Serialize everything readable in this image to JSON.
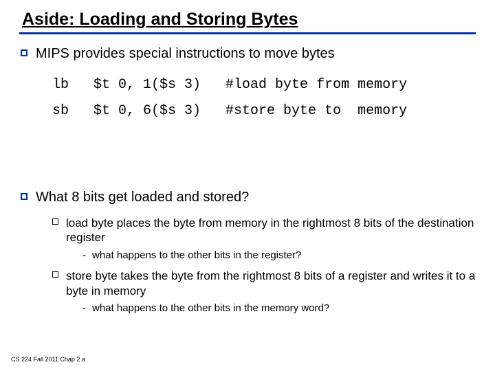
{
  "colors": {
    "accent": "#003399",
    "text": "#000000",
    "background": "#ffffff"
  },
  "title": "Aside: Loading and Storing Bytes",
  "bullet1": "MIPS provides special instructions to move bytes",
  "code": {
    "line1": "lb   $t 0, 1($s 3)   #load byte from memory",
    "line2": "sb   $t 0, 6($s 3)   #store byte to  memory"
  },
  "bullet2": "What 8 bits get loaded and stored?",
  "sub1": "load byte places the byte from memory in the rightmost 8 bits of the destination register",
  "sub1a": "what happens to the other bits in the register?",
  "sub2": "store byte takes the byte from the rightmost 8 bits of a register and writes it to a byte in memory",
  "sub2a": "what happens to the other bits in the memory word?",
  "footer": "CS 224 Fall 2011 Chap 2 a"
}
